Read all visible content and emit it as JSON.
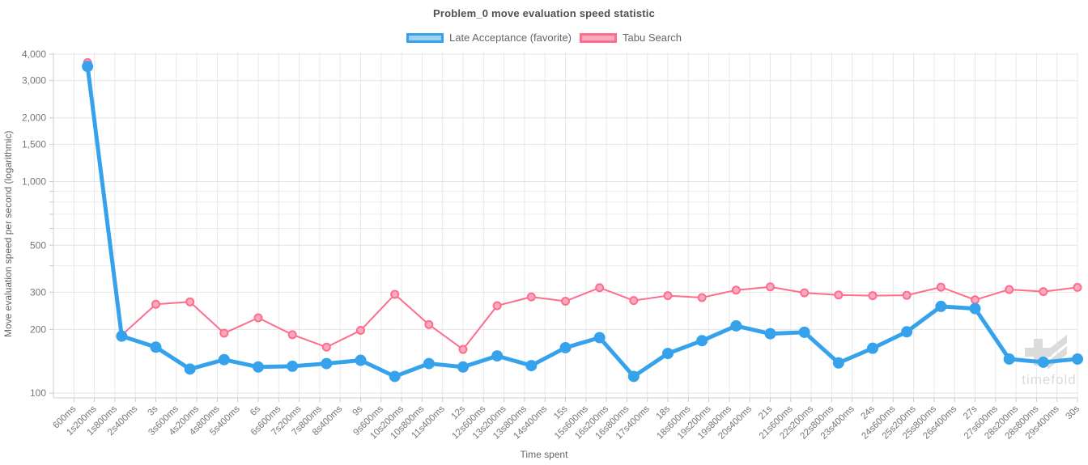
{
  "chart_data": {
    "type": "line",
    "title": "Problem_0 move evaluation speed statistic",
    "xlabel": "Time spent",
    "ylabel": "Move evaluation speed per second (logarithmic)",
    "y_scale": "log",
    "grid": true,
    "legend_position": "top",
    "xlim_ms": [
      0,
      30000
    ],
    "ylim": [
      95,
      4070
    ],
    "x_tick_interval_ms": 600,
    "x_tick_labels": [
      "600ms",
      "1s200ms",
      "1s800ms",
      "2s400ms",
      "3s",
      "3s600ms",
      "4s200ms",
      "4s800ms",
      "5s400ms",
      "6s",
      "6s600ms",
      "7s200ms",
      "7s800ms",
      "8s400ms",
      "9s",
      "9s600ms",
      "10s200ms",
      "10s800ms",
      "11s400ms",
      "12s",
      "12s600ms",
      "13s200ms",
      "13s800ms",
      "14s400ms",
      "15s",
      "15s600ms",
      "16s200ms",
      "16s800ms",
      "17s400ms",
      "18s",
      "18s600ms",
      "19s200ms",
      "19s800ms",
      "20s400ms",
      "21s",
      "21s600ms",
      "22s200ms",
      "22s800ms",
      "23s400ms",
      "24s",
      "24s600ms",
      "25s200ms",
      "25s800ms",
      "26s400ms",
      "27s",
      "27s600ms",
      "28s200ms",
      "28s800ms",
      "29s400ms",
      "30s"
    ],
    "y_tick_values": [
      100,
      200,
      300,
      500,
      1000,
      1500,
      2000,
      3000,
      4000
    ],
    "y_tick_labels": [
      "100",
      "200",
      "300",
      "500",
      "1,000",
      "1,500",
      "2,000",
      "3,000",
      "4,000"
    ],
    "y_minor_gridlines": [
      400,
      600,
      700,
      800,
      900
    ],
    "x_ms": [
      1000,
      2000,
      3000,
      4000,
      5000,
      6000,
      7000,
      8000,
      9000,
      10000,
      11000,
      12000,
      13000,
      14000,
      15000,
      16000,
      17000,
      18000,
      19000,
      20000,
      21000,
      22000,
      23000,
      24000,
      25000,
      26000,
      27000,
      28000,
      29000,
      30000
    ],
    "series": [
      {
        "name": "Late Acceptance (favorite)",
        "color": "#36a2eb",
        "fill_color": "#9ed2f2",
        "line_width": 5,
        "point_radius": 6,
        "values": [
          3500,
          186,
          165,
          130,
          144,
          133,
          134,
          138,
          143,
          120,
          138,
          133,
          150,
          135,
          164,
          183,
          120,
          154,
          177,
          208,
          191,
          194,
          139,
          163,
          195,
          257,
          251,
          145,
          140,
          145
        ]
      },
      {
        "name": "Tabu Search",
        "color": "#ff6d8d",
        "fill_color": "#fbabbd",
        "line_width": 2,
        "point_radius": 4.5,
        "values": [
          3650,
          188,
          263,
          270,
          192,
          227,
          189,
          165,
          198,
          293,
          211,
          161,
          259,
          285,
          272,
          315,
          274,
          289,
          283,
          307,
          318,
          298,
          291,
          289,
          290,
          317,
          276,
          309,
          302,
          316
        ]
      }
    ],
    "watermark": "timefold"
  }
}
